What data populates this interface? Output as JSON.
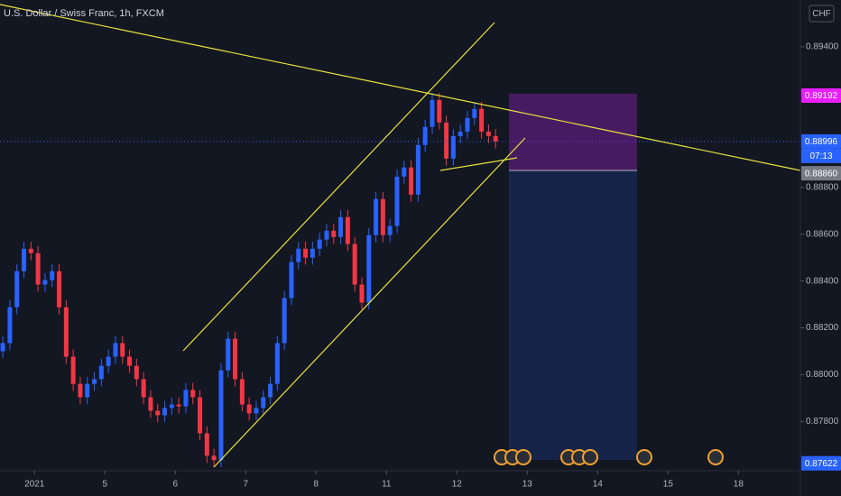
{
  "chart_data": {
    "type": "candlestick",
    "title": "U.S. Dollar / Swiss Franc, 1h, FXCM",
    "currency": "CHF",
    "countdown": "07:13",
    "up_color": "#2962ff",
    "down_color": "#f23645",
    "xlim": [
      -0.49,
      10.88
    ],
    "xticks": [
      {
        "value": 0,
        "label": "2021"
      },
      {
        "value": 1,
        "label": "5"
      },
      {
        "value": 2,
        "label": "6"
      },
      {
        "value": 3,
        "label": "7"
      },
      {
        "value": 4,
        "label": "8"
      },
      {
        "value": 5,
        "label": "11"
      },
      {
        "value": 6,
        "label": "12"
      },
      {
        "value": 7,
        "label": "13"
      },
      {
        "value": 8,
        "label": "14"
      },
      {
        "value": 9,
        "label": "15"
      },
      {
        "value": 10,
        "label": "18"
      }
    ],
    "ylim": [
      0.8759,
      0.896
    ],
    "yticks": [
      {
        "value": 0.894,
        "label": "0.89400"
      },
      {
        "value": 0.888,
        "label": "0.88800"
      },
      {
        "value": 0.886,
        "label": "0.88600"
      },
      {
        "value": 0.884,
        "label": "0.88400"
      },
      {
        "value": 0.882,
        "label": "0.88200"
      },
      {
        "value": 0.88,
        "label": "0.88000"
      },
      {
        "value": 0.878,
        "label": "0.87800"
      }
    ],
    "price_labels": [
      {
        "value": 0.89192,
        "label": "0.89192",
        "color": "#e91eff"
      },
      {
        "value": 0.88996,
        "label": "0.88996",
        "color": "#2962ff"
      },
      {
        "value": 0.8886,
        "label": "0.88860",
        "color": "#787b86"
      },
      {
        "value": 0.87622,
        "label": "0.87622",
        "color": "#2962ff"
      }
    ],
    "x": [
      -0.45,
      -0.35,
      -0.25,
      -0.15,
      -0.05,
      0.05,
      0.15,
      0.25,
      0.35,
      0.45,
      0.55,
      0.65,
      0.75,
      0.85,
      0.95,
      1.05,
      1.15,
      1.25,
      1.35,
      1.45,
      1.55,
      1.65,
      1.75,
      1.85,
      1.95,
      2.05,
      2.15,
      2.25,
      2.35,
      2.45,
      2.55,
      2.65,
      2.75,
      2.85,
      2.95,
      3.05,
      3.15,
      3.25,
      3.35,
      3.45,
      3.55,
      3.65,
      3.75,
      3.85,
      3.95,
      4.05,
      4.15,
      4.25,
      4.35,
      4.45,
      4.55,
      4.65,
      4.75,
      4.85,
      4.95,
      5.05,
      5.15,
      5.25,
      5.35,
      5.45,
      5.55,
      5.65,
      5.75,
      5.85,
      5.95,
      6.05,
      6.15,
      6.25,
      6.35,
      6.45,
      6.55
    ],
    "open": [
      0.881,
      0.88135,
      0.88288,
      0.88442,
      0.88538,
      0.88519,
      0.88385,
      0.88404,
      0.88442,
      0.88288,
      0.88077,
      0.87961,
      0.87904,
      0.87961,
      0.87981,
      0.88038,
      0.88077,
      0.88135,
      0.88077,
      0.88038,
      0.87981,
      0.87904,
      0.87846,
      0.87827,
      0.87858,
      0.87873,
      0.87865,
      0.87935,
      0.87904,
      0.8775,
      0.87654,
      0.87635,
      0.88019,
      0.88154,
      0.87981,
      0.87873,
      0.87835,
      0.87858,
      0.87904,
      0.87961,
      0.88135,
      0.88327,
      0.88481,
      0.88538,
      0.885,
      0.88538,
      0.88577,
      0.88615,
      0.88588,
      0.88673,
      0.88558,
      0.88385,
      0.88308,
      0.88596,
      0.8875,
      0.88596,
      0.88635,
      0.88846,
      0.88885,
      0.88769,
      0.88981,
      0.89058,
      0.89173,
      0.89077,
      0.88923,
      0.89019,
      0.89038,
      0.89096,
      0.89135,
      0.89038,
      0.89019
    ],
    "high": [
      0.88165,
      0.88318,
      0.88472,
      0.88568,
      0.88568,
      0.88549,
      0.88434,
      0.88472,
      0.88472,
      0.88318,
      0.88107,
      0.87991,
      0.87991,
      0.88011,
      0.88068,
      0.88107,
      0.88165,
      0.88165,
      0.88107,
      0.88068,
      0.88011,
      0.87934,
      0.87876,
      0.87888,
      0.87903,
      0.87903,
      0.87965,
      0.87965,
      0.87934,
      0.8778,
      0.87684,
      0.88049,
      0.88184,
      0.88184,
      0.88011,
      0.87903,
      0.87888,
      0.87934,
      0.87991,
      0.88165,
      0.88357,
      0.88511,
      0.88568,
      0.88568,
      0.88568,
      0.88607,
      0.88645,
      0.88645,
      0.88703,
      0.88703,
      0.88588,
      0.88415,
      0.88626,
      0.8878,
      0.8878,
      0.88665,
      0.88876,
      0.88915,
      0.88915,
      0.89011,
      0.89088,
      0.89203,
      0.89203,
      0.89107,
      0.89049,
      0.89068,
      0.89126,
      0.89165,
      0.89165,
      0.89068,
      0.89049
    ],
    "low": [
      0.8807,
      0.88105,
      0.88258,
      0.88412,
      0.88489,
      0.88355,
      0.88355,
      0.88374,
      0.88258,
      0.88047,
      0.87931,
      0.87874,
      0.87874,
      0.87931,
      0.87951,
      0.88008,
      0.88047,
      0.88047,
      0.88008,
      0.87951,
      0.87874,
      0.87816,
      0.87797,
      0.87797,
      0.87828,
      0.87835,
      0.87835,
      0.87874,
      0.8772,
      0.87624,
      0.87605,
      0.87605,
      0.87989,
      0.87951,
      0.87843,
      0.87805,
      0.87805,
      0.87828,
      0.87874,
      0.87931,
      0.88105,
      0.88297,
      0.88451,
      0.8847,
      0.8847,
      0.88508,
      0.88547,
      0.88558,
      0.88558,
      0.88528,
      0.88355,
      0.88278,
      0.88278,
      0.88566,
      0.88566,
      0.88566,
      0.88605,
      0.88816,
      0.88739,
      0.88739,
      0.88951,
      0.89028,
      0.89047,
      0.88893,
      0.88893,
      0.88989,
      0.89008,
      0.89066,
      0.89008,
      0.88989,
      0.88966
    ],
    "close": [
      0.88135,
      0.88288,
      0.88442,
      0.88538,
      0.88519,
      0.88385,
      0.88404,
      0.88442,
      0.88288,
      0.88077,
      0.87961,
      0.87904,
      0.87961,
      0.87981,
      0.88038,
      0.88077,
      0.88135,
      0.88077,
      0.88038,
      0.87981,
      0.87904,
      0.87846,
      0.87827,
      0.87858,
      0.87873,
      0.87865,
      0.87935,
      0.87904,
      0.8775,
      0.87654,
      0.87635,
      0.88019,
      0.88154,
      0.87981,
      0.87873,
      0.87835,
      0.87858,
      0.87904,
      0.87961,
      0.88135,
      0.88327,
      0.88481,
      0.88538,
      0.885,
      0.88538,
      0.88577,
      0.88615,
      0.88588,
      0.88673,
      0.88558,
      0.88385,
      0.88308,
      0.88596,
      0.8875,
      0.88596,
      0.88635,
      0.88846,
      0.88885,
      0.88769,
      0.88981,
      0.89058,
      0.89173,
      0.89077,
      0.88923,
      0.89019,
      0.89038,
      0.89096,
      0.89135,
      0.89038,
      0.89019,
      0.88996
    ]
  }
}
